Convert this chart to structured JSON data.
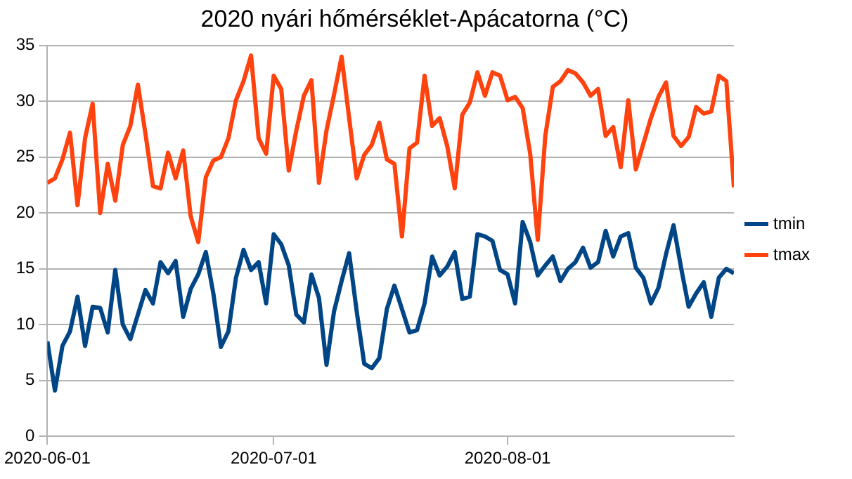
{
  "chart_data": {
    "type": "line",
    "title": "2020 nyári hőmérséklet-Apácatorna (°C)",
    "xlim": [
      "2020-06-01",
      "2020-08-31"
    ],
    "xticks": [
      "2020-06-01",
      "2020-07-01",
      "2020-08-01"
    ],
    "ylim": [
      0,
      35
    ],
    "yticks": [
      0,
      5,
      10,
      15,
      20,
      25,
      30,
      35
    ],
    "grid": "y",
    "legend": "right",
    "marker": "none",
    "line_style": "solid",
    "x": [
      "2020-06-01",
      "2020-06-02",
      "2020-06-03",
      "2020-06-04",
      "2020-06-05",
      "2020-06-06",
      "2020-06-07",
      "2020-06-08",
      "2020-06-09",
      "2020-06-10",
      "2020-06-11",
      "2020-06-12",
      "2020-06-13",
      "2020-06-14",
      "2020-06-15",
      "2020-06-16",
      "2020-06-17",
      "2020-06-18",
      "2020-06-19",
      "2020-06-20",
      "2020-06-21",
      "2020-06-22",
      "2020-06-23",
      "2020-06-24",
      "2020-06-25",
      "2020-06-26",
      "2020-06-27",
      "2020-06-28",
      "2020-06-29",
      "2020-06-30",
      "2020-07-01",
      "2020-07-02",
      "2020-07-03",
      "2020-07-04",
      "2020-07-05",
      "2020-07-06",
      "2020-07-07",
      "2020-07-08",
      "2020-07-09",
      "2020-07-10",
      "2020-07-11",
      "2020-07-12",
      "2020-07-13",
      "2020-07-14",
      "2020-07-15",
      "2020-07-16",
      "2020-07-17",
      "2020-07-18",
      "2020-07-19",
      "2020-07-20",
      "2020-07-21",
      "2020-07-22",
      "2020-07-23",
      "2020-07-24",
      "2020-07-25",
      "2020-07-26",
      "2020-07-27",
      "2020-07-28",
      "2020-07-29",
      "2020-07-30",
      "2020-07-31",
      "2020-08-01",
      "2020-08-02",
      "2020-08-03",
      "2020-08-04",
      "2020-08-05",
      "2020-08-06",
      "2020-08-07",
      "2020-08-08",
      "2020-08-09",
      "2020-08-10",
      "2020-08-11",
      "2020-08-12",
      "2020-08-13",
      "2020-08-14",
      "2020-08-15",
      "2020-08-16",
      "2020-08-17",
      "2020-08-18",
      "2020-08-19",
      "2020-08-20",
      "2020-08-21",
      "2020-08-22",
      "2020-08-23",
      "2020-08-24",
      "2020-08-25",
      "2020-08-26",
      "2020-08-27",
      "2020-08-28",
      "2020-08-29",
      "2020-08-30",
      "2020-08-31"
    ],
    "series": [
      {
        "name": "tmin",
        "color": "#004586",
        "values": [
          8.5,
          4.1,
          8.1,
          9.4,
          12.5,
          8.1,
          11.6,
          11.5,
          9.3,
          14.9,
          10,
          8.7,
          10.9,
          13.1,
          11.9,
          15.6,
          14.6,
          15.7,
          10.7,
          13.2,
          14.5,
          16.5,
          12.8,
          8,
          9.4,
          14.2,
          16.7,
          14.9,
          15.6,
          11.9,
          18.1,
          17.2,
          15.3,
          10.9,
          10.2,
          14.5,
          12.4,
          6.4,
          11.2,
          13.9,
          16.4,
          11.2,
          6.5,
          6.1,
          7,
          11.4,
          13.5,
          11.4,
          9.3,
          9.5,
          11.9,
          16.1,
          14.4,
          15.2,
          16.5,
          12.3,
          12.5,
          18.1,
          17.9,
          17.5,
          14.9,
          14.5,
          11.9,
          19.2,
          17.4,
          14.4,
          15.3,
          16.1,
          13.9,
          15,
          15.6,
          16.9,
          15.1,
          15.6,
          18.4,
          16.1,
          17.9,
          18.2,
          15.1,
          14.2,
          11.9,
          13.3,
          16.3,
          18.9,
          15.1,
          11.6,
          12.8,
          13.8,
          10.7,
          14.2,
          15,
          14.6
        ]
      },
      {
        "name": "tmax",
        "color": "#ff420e",
        "values": [
          22.7,
          23.1,
          24.8,
          27.2,
          20.7,
          26.7,
          29.8,
          20,
          24.4,
          21.1,
          26.1,
          27.8,
          31.5,
          27.1,
          22.4,
          22.2,
          25.4,
          23.1,
          25.6,
          19.7,
          17.4,
          23.2,
          24.7,
          25,
          26.7,
          30.1,
          31.8,
          34.1,
          26.7,
          25.3,
          32.3,
          31.1,
          23.8,
          27.4,
          30.5,
          31.9,
          22.7,
          27.4,
          30.6,
          34,
          28.5,
          23.1,
          25.2,
          26.1,
          28.1,
          24.8,
          24.4,
          17.9,
          25.8,
          26.3,
          32.3,
          27.8,
          28.5,
          26,
          22.2,
          28.8,
          29.9,
          32.6,
          30.5,
          32.6,
          32.3,
          30.1,
          30.4,
          29.4,
          25.3,
          17.6,
          26.9,
          31.3,
          31.8,
          32.8,
          32.5,
          31.7,
          30.5,
          31.1,
          26.9,
          27.7,
          24.1,
          30.1,
          23.9,
          26.2,
          28.5,
          30.4,
          31.7,
          26.9,
          26,
          26.8,
          29.5,
          28.9,
          29.1,
          32.3,
          31.8,
          22.3
        ]
      }
    ]
  }
}
